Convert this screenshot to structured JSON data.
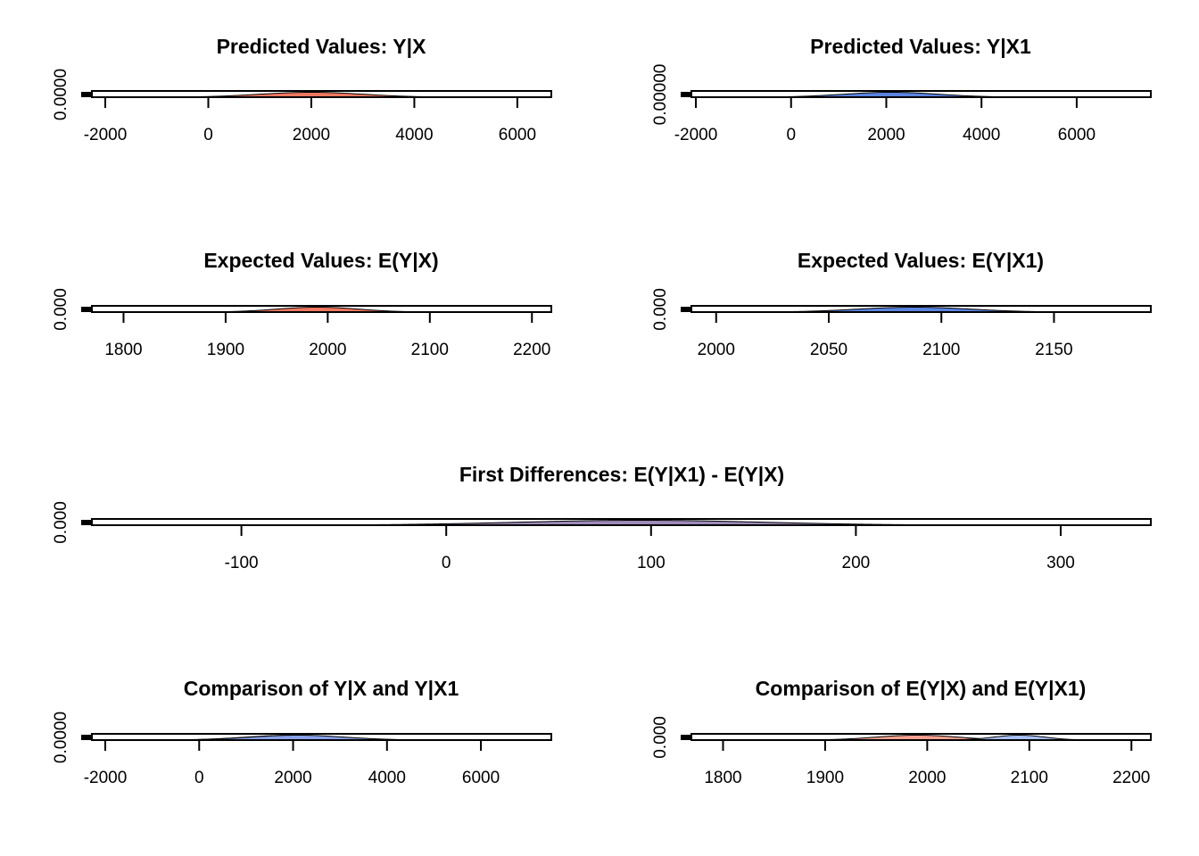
{
  "chart_data": [
    {
      "type": "area",
      "title": "Predicted Values: Y|X",
      "ylabel": "0.0000",
      "xlim": [
        -2260,
        6660
      ],
      "ticks": [
        -2000,
        0,
        2000,
        4000,
        6000
      ],
      "series": [
        {
          "name": "Y|X",
          "mean": 2000,
          "sd": 1000,
          "color": "#F07860"
        }
      ]
    },
    {
      "type": "area",
      "title": "Predicted Values: Y|X1",
      "ylabel": "0.00000",
      "xlim": [
        -2094,
        7557
      ],
      "ticks": [
        -2000,
        0,
        2000,
        4000,
        6000
      ],
      "series": [
        {
          "name": "Y|X1",
          "mean": 2100,
          "sd": 1000,
          "color": "#5A84E0"
        }
      ]
    },
    {
      "type": "area",
      "title": "Expected Values: E(Y|X)",
      "ylabel": "0.000",
      "xlim": [
        1769,
        2219
      ],
      "ticks": [
        1800,
        1900,
        2000,
        2100,
        2200
      ],
      "series": [
        {
          "name": "E(Y|X)",
          "mean": 1990,
          "sd": 40,
          "color": "#F07860"
        }
      ]
    },
    {
      "type": "area",
      "title": "Expected Values: E(Y|X1)",
      "ylabel": "0.000",
      "xlim": [
        1989,
        2193
      ],
      "ticks": [
        2000,
        2050,
        2100,
        2150
      ],
      "series": [
        {
          "name": "E(Y|X1)",
          "mean": 2088,
          "sd": 25,
          "color": "#5A84E0"
        }
      ]
    },
    {
      "type": "area",
      "title": "First Differences: E(Y|X1) - E(Y|X)",
      "ylabel": "0.000",
      "xlim": [
        -173,
        344
      ],
      "ticks": [
        -100,
        0,
        100,
        200,
        300
      ],
      "series": [
        {
          "name": "E(Y|X1) - E(Y|X)",
          "mean": 95,
          "sd": 60,
          "color": "#9C8AB8"
        }
      ]
    },
    {
      "type": "area",
      "title": "Comparison of Y|X and Y|X1",
      "ylabel": "0.0000",
      "xlim": [
        -2285,
        7500
      ],
      "ticks": [
        -2000,
        0,
        2000,
        4000,
        6000
      ],
      "series": [
        {
          "name": "Y|X",
          "mean": 2000,
          "sd": 1000,
          "color": "#F07860"
        },
        {
          "name": "Y|X1",
          "mean": 2100,
          "sd": 1000,
          "color": "#8AA0E8"
        }
      ]
    },
    {
      "type": "area",
      "title": "Comparison of E(Y|X) and E(Y|X1)",
      "ylabel": "0.000",
      "xlim": [
        1769,
        2219
      ],
      "ticks": [
        1800,
        1900,
        2000,
        2100,
        2200
      ],
      "series": [
        {
          "name": "E(Y|X)",
          "mean": 1990,
          "sd": 40,
          "color": "#F4A090"
        },
        {
          "name": "E(Y|X1)",
          "mean": 2090,
          "sd": 25,
          "color": "#A8C0F4"
        }
      ]
    }
  ]
}
